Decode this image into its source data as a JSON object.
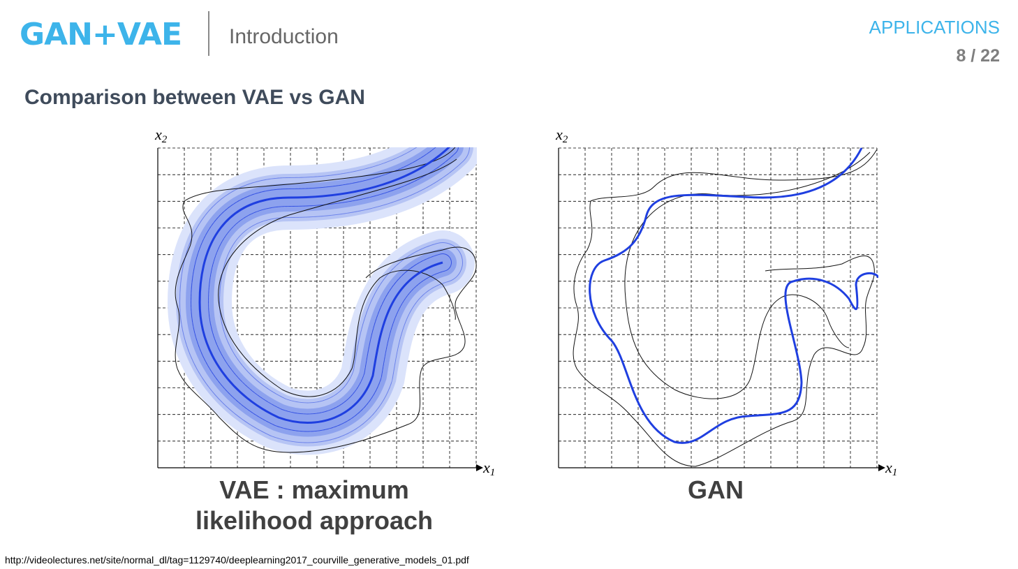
{
  "header": {
    "brand": "GAN+VAE",
    "title": "Introduction",
    "section": "APPLICATIONS",
    "page": "8 / 22"
  },
  "slide_title": "Comparison between VAE vs GAN",
  "figures": [
    {
      "caption_line1": "VAE : maximum",
      "caption_line2": "likelihood approach",
      "x_axis": "x",
      "x_sub": "1",
      "y_axis": "x",
      "y_sub": "2"
    },
    {
      "caption": "GAN",
      "x_axis": "x",
      "x_sub": "1",
      "y_axis": "x",
      "y_sub": "2"
    }
  ],
  "colors": {
    "accent": "#3db4ea",
    "curve": "#1f3fe0",
    "band_outer": "#dbe3fb",
    "band_inner": "#9fb2f0"
  },
  "footer_url": "http://videolectures.net/site/normal_dl/tag=1129740/deeplearning2017_courville_generative_models_01.pdf"
}
